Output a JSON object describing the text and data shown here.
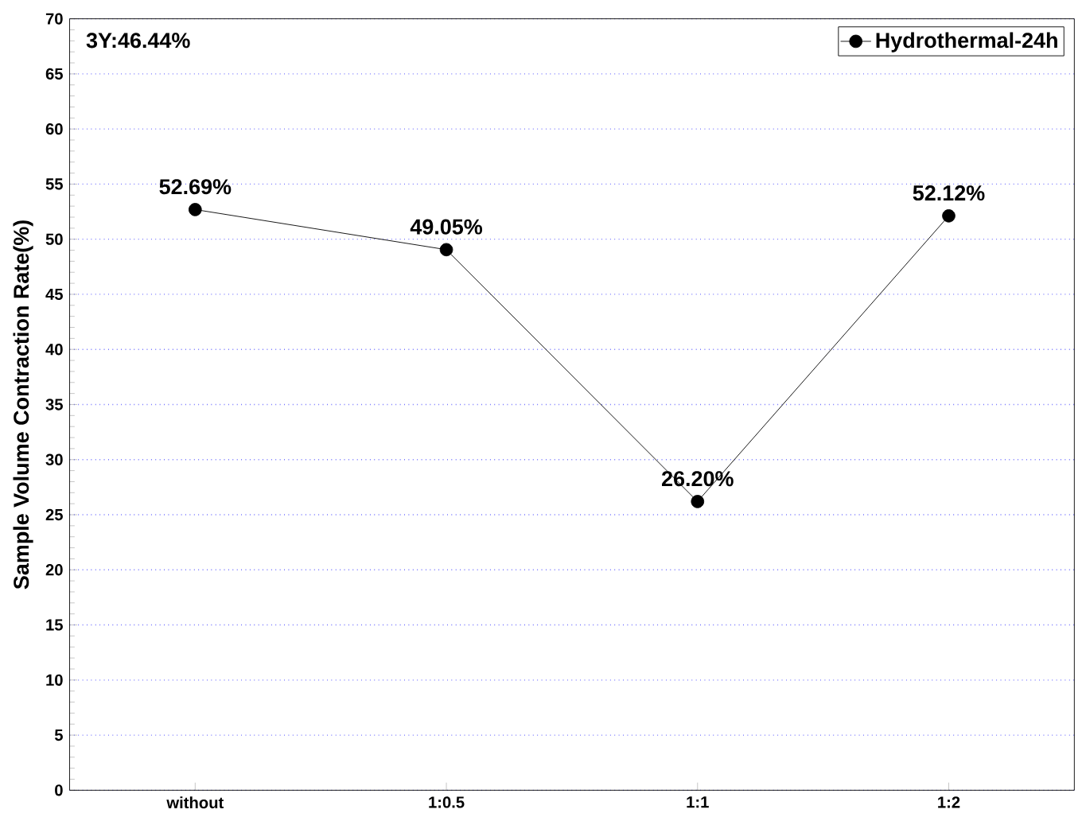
{
  "chart_data": {
    "type": "line",
    "ylabel": "Sample Volume Contraction Rate(%)",
    "categories": [
      "without",
      "1:0.5",
      "1:1",
      "1:2"
    ],
    "series": [
      {
        "name": "Hydrothermal-24h",
        "color": "#000000",
        "values": [
          52.69,
          49.05,
          26.2,
          52.12
        ],
        "value_labels": [
          "52.69%",
          "49.05%",
          "26.20%",
          "52.12%"
        ]
      }
    ],
    "ylim": [
      0,
      70
    ],
    "yticks": [
      0,
      5,
      10,
      15,
      20,
      25,
      30,
      35,
      40,
      45,
      50,
      55,
      60,
      65,
      70
    ],
    "grid": "y",
    "legend": "top right",
    "marker": "circle",
    "line_style": "solid",
    "annotations": [
      "3Y:46.44%"
    ]
  }
}
